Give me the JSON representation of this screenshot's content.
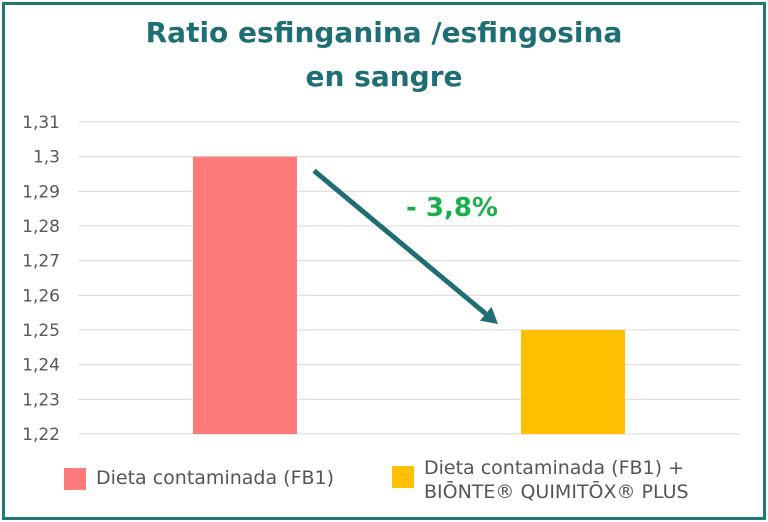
{
  "chart_data": {
    "type": "bar",
    "title_line1": "Ratio esfinganina /esfingosina",
    "title_line2": "en sangre",
    "categories": [
      "Dieta contaminada (FB1)",
      "Dieta contaminada (FB1) + BIŌNTE® QUIMITŌX® PLUS"
    ],
    "values": [
      1.3,
      1.25
    ],
    "colors": [
      "#ff7b7b",
      "#ffc000"
    ],
    "ylim": [
      1.22,
      1.31
    ],
    "yticks": [
      "1,22",
      "1,23",
      "1,24",
      "1,25",
      "1,26",
      "1,27",
      "1,28",
      "1,29",
      "1,3",
      "1,31"
    ],
    "ytick_values": [
      1.22,
      1.23,
      1.24,
      1.25,
      1.26,
      1.27,
      1.28,
      1.29,
      1.3,
      1.31
    ],
    "grid": true,
    "annotation": "- 3,8%",
    "annotation_color": "#19b04c",
    "arrow_color": "#1f6e74",
    "legend": {
      "placement": "bottom",
      "item1": "Dieta contaminada (FB1)",
      "item2_line1": "Dieta contaminada (FB1) +",
      "item2_line2": "BIŌNTE® QUIMITŌX® PLUS"
    }
  }
}
